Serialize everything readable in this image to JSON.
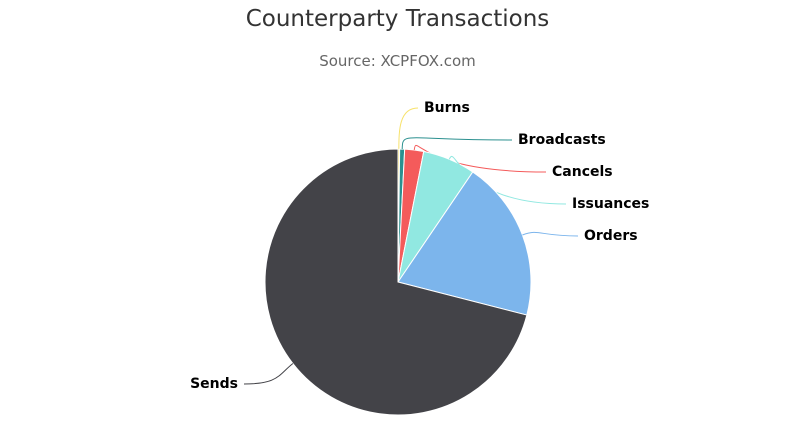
{
  "chart_data": {
    "type": "pie",
    "title": "Counterparty Transactions",
    "subtitle": "Source: XCPFOX.com",
    "slices": [
      {
        "name": "Burns",
        "value": 0.2,
        "color": "#f7e26b"
      },
      {
        "name": "Broadcasts",
        "value": 0.6,
        "color": "#2b908f"
      },
      {
        "name": "Cancels",
        "value": 2.3,
        "color": "#f45b5b"
      },
      {
        "name": "Issuances",
        "value": 6.4,
        "color": "#91e8e1"
      },
      {
        "name": "Orders",
        "value": 19.5,
        "color": "#7cb5ec"
      },
      {
        "name": "Sends",
        "value": 71.0,
        "color": "#434348"
      }
    ]
  }
}
